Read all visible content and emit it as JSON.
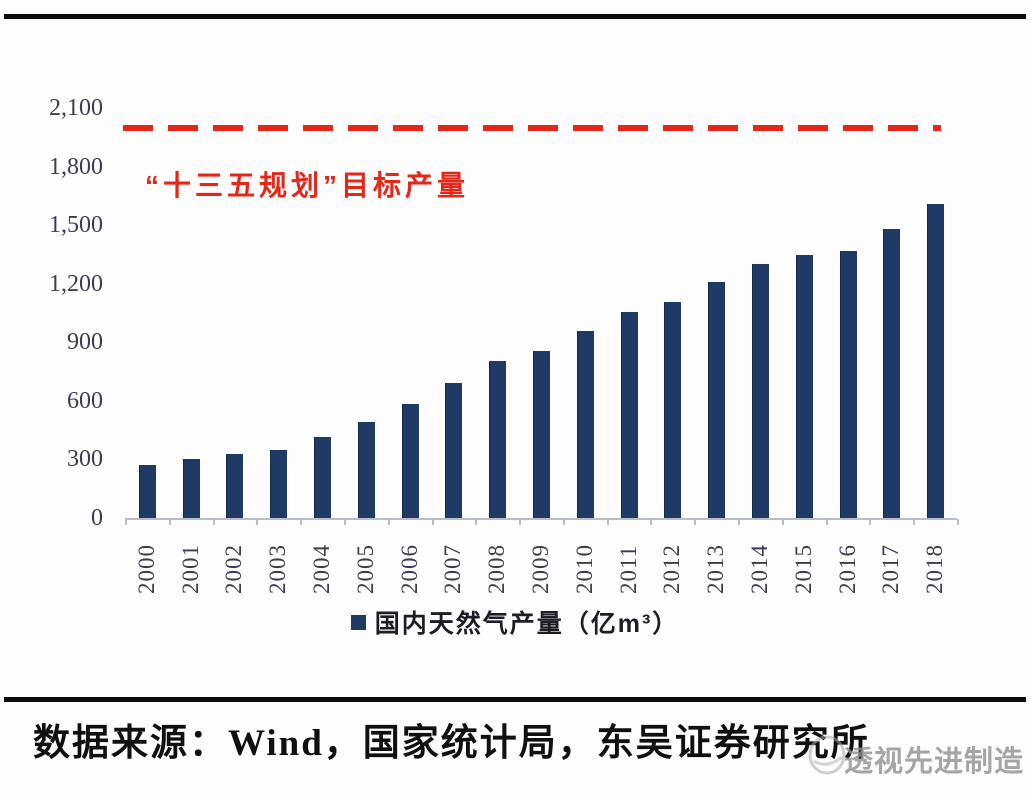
{
  "chart_data": {
    "type": "bar",
    "title": "",
    "xlabel": "",
    "ylabel": "",
    "categories": [
      "2000",
      "2001",
      "2002",
      "2003",
      "2004",
      "2005",
      "2006",
      "2007",
      "2008",
      "2009",
      "2010",
      "2011",
      "2012",
      "2013",
      "2014",
      "2015",
      "2016",
      "2017",
      "2018"
    ],
    "values": [
      272,
      303,
      327,
      350,
      415,
      493,
      586,
      692,
      803,
      853,
      958,
      1053,
      1106,
      1209,
      1302,
      1346,
      1369,
      1480,
      1610
    ],
    "series_name": "国内天然气产量（亿m³）",
    "ylim": [
      0,
      2100
    ],
    "ytick_step": 300,
    "ytick_labels": [
      "0",
      "300",
      "600",
      "900",
      "1,200",
      "1,500",
      "1,800",
      "2,100"
    ],
    "grid": false,
    "legend_position": "bottom",
    "bar_color": "#1f3a64",
    "target_line": {
      "value": 2000,
      "label": "“十三五规划”目标产量",
      "style": "dashed",
      "color": "#e52619"
    }
  },
  "legend": {
    "label": "国内天然气产量（亿m³）",
    "swatch_color": "#1f3a64"
  },
  "annotation": {
    "target_label": "“十三五规划”目标产量"
  },
  "footer": {
    "source_text": "数据来源：Wind，国家统计局，东吴证券研究所"
  },
  "watermark": {
    "text": "透视先进制造"
  },
  "colors": {
    "bar": "#1f3a64",
    "target": "#e52619",
    "axis": "#b6bdc6",
    "tick_text": "#3c3c52",
    "rule": "#0b0b0b",
    "watermark": "#909090"
  }
}
